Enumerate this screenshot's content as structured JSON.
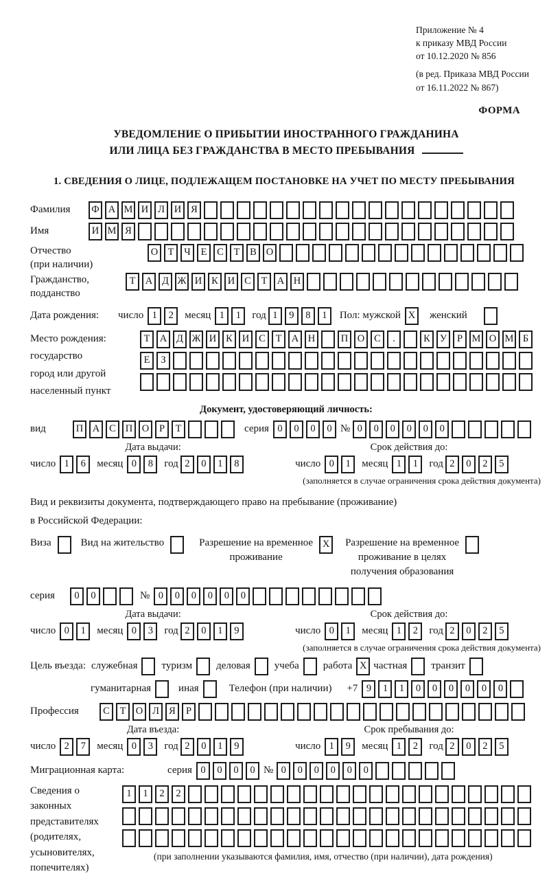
{
  "header": {
    "lines": [
      "Приложение № 4",
      "к приказу МВД России",
      "от 10.12.2020 № 856"
    ],
    "amendment_lines": [
      "(в ред. Приказа МВД России",
      "от 16.11.2022 № 867)"
    ],
    "form_label": "ФОРМА"
  },
  "title": {
    "line1": "УВЕДОМЛЕНИЕ О ПРИБЫТИИ ИНОСТРАННОГО ГРАЖДАНИНА",
    "line2": "ИЛИ ЛИЦА БЕЗ ГРАЖДАНСТВА В МЕСТО ПРЕБЫВАНИЯ"
  },
  "section1_heading": "1. СВЕДЕНИЯ О ЛИЦЕ, ПОДЛЕЖАЩЕМ ПОСТАНОВКЕ НА УЧЕТ ПО МЕСТУ ПРЕБЫВАНИЯ",
  "labels": {
    "day": "число",
    "month": "месяц",
    "year": "год",
    "series": "серия",
    "number": "№",
    "issue_date": "Дата выдачи:",
    "valid_until": "Срок действия до:",
    "validity_note": "(заполняется в случае ограничения срока действия документа)"
  },
  "person": {
    "surname": {
      "label": "Фамилия",
      "boxes": {
        "text": "ФАМИЛИЯ",
        "total": 26
      }
    },
    "given_name": {
      "label": "Имя",
      "boxes": {
        "text": "ИМЯ",
        "total": 26
      }
    },
    "patronymic": {
      "label_lines": [
        "Отчество",
        "(при наличии)"
      ],
      "boxes": {
        "text": "ОТЧЕСТВО",
        "total": 23
      }
    },
    "citizenship": {
      "label_lines": [
        "Гражданство,",
        "подданство"
      ],
      "boxes": {
        "text": "ТАДЖИКИСТАН",
        "total": 24
      }
    },
    "birth_date": {
      "label": "Дата рождения:",
      "day": {
        "text": "12",
        "total": 2
      },
      "month": {
        "text": "11",
        "total": 2
      },
      "year": {
        "text": "1981",
        "total": 4
      }
    },
    "sex": {
      "label": "Пол: мужской",
      "male_box": {
        "text": "X",
        "total": 1
      },
      "female_label": "женский",
      "female_box": {
        "text": "",
        "total": 1
      }
    },
    "birth_place": {
      "label_lines": [
        "Место рождения:",
        "государство",
        "город или другой",
        "населенный пункт"
      ],
      "row1": {
        "text": "ТАДЖИКИСТАН ПОС. КУРМОМБ",
        "total": 24
      },
      "row2": {
        "text": "ЕЗ",
        "total": 24
      },
      "row3": {
        "text": "",
        "total": 24
      }
    }
  },
  "identity_doc": {
    "heading": "Документ, удостоверяющий личность:",
    "kind_label": "вид",
    "kind": {
      "text": "ПАСПОРТ",
      "total": 10
    },
    "series": {
      "text": "0000",
      "total": 4
    },
    "number": {
      "text": "000000",
      "total": 11
    },
    "issue": {
      "day": {
        "text": "16",
        "total": 2
      },
      "month": {
        "text": "08",
        "total": 2
      },
      "year": {
        "text": "2018",
        "total": 4
      }
    },
    "valid": {
      "day": {
        "text": "01",
        "total": 2
      },
      "month": {
        "text": "11",
        "total": 2
      },
      "year": {
        "text": "2025",
        "total": 4
      }
    }
  },
  "residence_doc": {
    "intro_lines": [
      "Вид и реквизиты документа, подтверждающего право на пребывание (проживание)",
      "в Российской Федерации:"
    ],
    "options": [
      {
        "lines": [
          "Виза"
        ],
        "box": {
          "text": "",
          "total": 1
        }
      },
      {
        "lines": [
          "Вид на жительство"
        ],
        "box": {
          "text": "",
          "total": 1
        }
      },
      {
        "lines": [
          "Разрешение на временное",
          "проживание"
        ],
        "box": {
          "text": "X",
          "total": 1
        }
      },
      {
        "lines": [
          "Разрешение на временное",
          "проживание в целях",
          "получения образования"
        ],
        "box": {
          "text": "",
          "total": 1
        }
      }
    ],
    "series": {
      "text": "00",
      "total": 4
    },
    "number": {
      "text": "000000",
      "total": 14
    },
    "issue": {
      "day": {
        "text": "01",
        "total": 2
      },
      "month": {
        "text": "03",
        "total": 2
      },
      "year": {
        "text": "2019",
        "total": 4
      }
    },
    "valid": {
      "day": {
        "text": "01",
        "total": 2
      },
      "month": {
        "text": "12",
        "total": 2
      },
      "year": {
        "text": "2025",
        "total": 4
      }
    }
  },
  "entry_purpose": {
    "label": "Цель въезда:",
    "options": [
      {
        "label": "служебная",
        "box": {
          "text": "",
          "total": 1
        }
      },
      {
        "label": "туризм",
        "box": {
          "text": "",
          "total": 1
        }
      },
      {
        "label": "деловая",
        "box": {
          "text": "",
          "total": 1
        }
      },
      {
        "label": "учеба",
        "box": {
          "text": "",
          "total": 1
        }
      },
      {
        "label": "работа",
        "box": {
          "text": "X",
          "total": 1
        }
      },
      {
        "label": "частная",
        "box": {
          "text": "",
          "total": 1
        }
      },
      {
        "label": "транзит",
        "box": {
          "text": "",
          "total": 1
        }
      },
      {
        "label": "гуманитарная",
        "box": {
          "text": "",
          "total": 1
        }
      },
      {
        "label": "иная",
        "box": {
          "text": "",
          "total": 1
        }
      }
    ],
    "phone_label": "Телефон (при наличии)",
    "phone_prefix": "+7",
    "phone": {
      "text": "911000000",
      "total": 10
    }
  },
  "profession": {
    "label": "Профессия",
    "boxes": {
      "text": "СТОЛЯР",
      "total": 26
    }
  },
  "entry": {
    "date_label": "Дата въезда:",
    "stay_label": "Срок пребывания до:",
    "date": {
      "day": {
        "text": "27",
        "total": 2
      },
      "month": {
        "text": "03",
        "total": 2
      },
      "year": {
        "text": "2019",
        "total": 4
      }
    },
    "stay_until": {
      "day": {
        "text": "19",
        "total": 2
      },
      "month": {
        "text": "12",
        "total": 2
      },
      "year": {
        "text": "2025",
        "total": 4
      }
    }
  },
  "migration_card": {
    "label": "Миграционная карта:",
    "series": {
      "text": "0000",
      "total": 4
    },
    "number": {
      "text": "000000",
      "total": 11
    }
  },
  "representatives": {
    "label_lines": [
      "Сведения о",
      "законных",
      "представителях",
      "(родителях,",
      "усыновителях,",
      "попечителях)"
    ],
    "row1": {
      "text": "1122",
      "total": 25
    },
    "row2": {
      "text": "",
      "total": 25
    },
    "row3": {
      "text": "",
      "total": 25
    },
    "note": "(при заполнении указываются фамилия, имя, отчество (при наличии), дата рождения)"
  }
}
